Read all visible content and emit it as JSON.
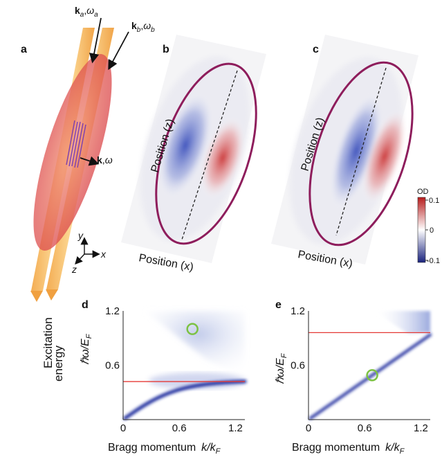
{
  "panel_labels": {
    "a": "a",
    "b": "b",
    "c": "c",
    "d": "d",
    "e": "e"
  },
  "beam_a": {
    "k": "k",
    "k_sub": "a",
    "w": "ω",
    "w_sub": "a"
  },
  "beam_b": {
    "k": "k",
    "k_sub": "b",
    "w": "ω",
    "w_sub": "b"
  },
  "excitation": {
    "k": "k",
    "w": "ω"
  },
  "axes_xyz": {
    "x": "x",
    "y": "y",
    "z": "z"
  },
  "image_b": {
    "ylabel": "Position (z)",
    "xlabel": "Position (x)"
  },
  "image_c": {
    "ylabel": "Position (z)",
    "xlabel": "Position (x)"
  },
  "colorbar": {
    "title": "OD",
    "ticks": [
      "0.1",
      "0",
      "-0.1"
    ],
    "colors": {
      "high": "#c62828",
      "mid": "#ffffff",
      "low": "#283593"
    }
  },
  "chart_data": [
    {
      "type": "heatmap",
      "panel": "d",
      "ylabel_line1": "Excitation",
      "ylabel_line2": "energy",
      "ylabel_symbol": "ℏω/E",
      "ylabel_sub": "F",
      "xlabel_text": "Bragg momentum",
      "xlabel_symbol": "k/k",
      "xlabel_sub": "F",
      "xlim": [
        0,
        1.3
      ],
      "ylim": [
        0,
        1.2
      ],
      "x_ticks": [
        "0",
        "0.6",
        "1.2"
      ],
      "y_ticks": [
        "0.6",
        "1.2"
      ],
      "red_line_y": 0.42,
      "marker": {
        "x": 0.74,
        "y": 1.0
      },
      "colors": {
        "line": "#e53935",
        "marker": "#7cc242",
        "density": "#1a2a9c"
      }
    },
    {
      "type": "heatmap",
      "panel": "e",
      "ylabel_symbol": "ℏω/E",
      "ylabel_sub": "F",
      "xlabel_text": "Bragg momentum",
      "xlabel_symbol": "k/k",
      "xlabel_sub": "F",
      "xlim": [
        0,
        1.3
      ],
      "ylim": [
        0,
        1.2
      ],
      "x_ticks": [
        "0",
        "0.6",
        "1.2"
      ],
      "y_ticks": [
        "0.6",
        "1.2"
      ],
      "red_line_y": 0.96,
      "marker": {
        "x": 0.68,
        "y": 0.49
      },
      "colors": {
        "line": "#e53935",
        "marker": "#7cc242",
        "density": "#1a2a9c"
      }
    }
  ]
}
